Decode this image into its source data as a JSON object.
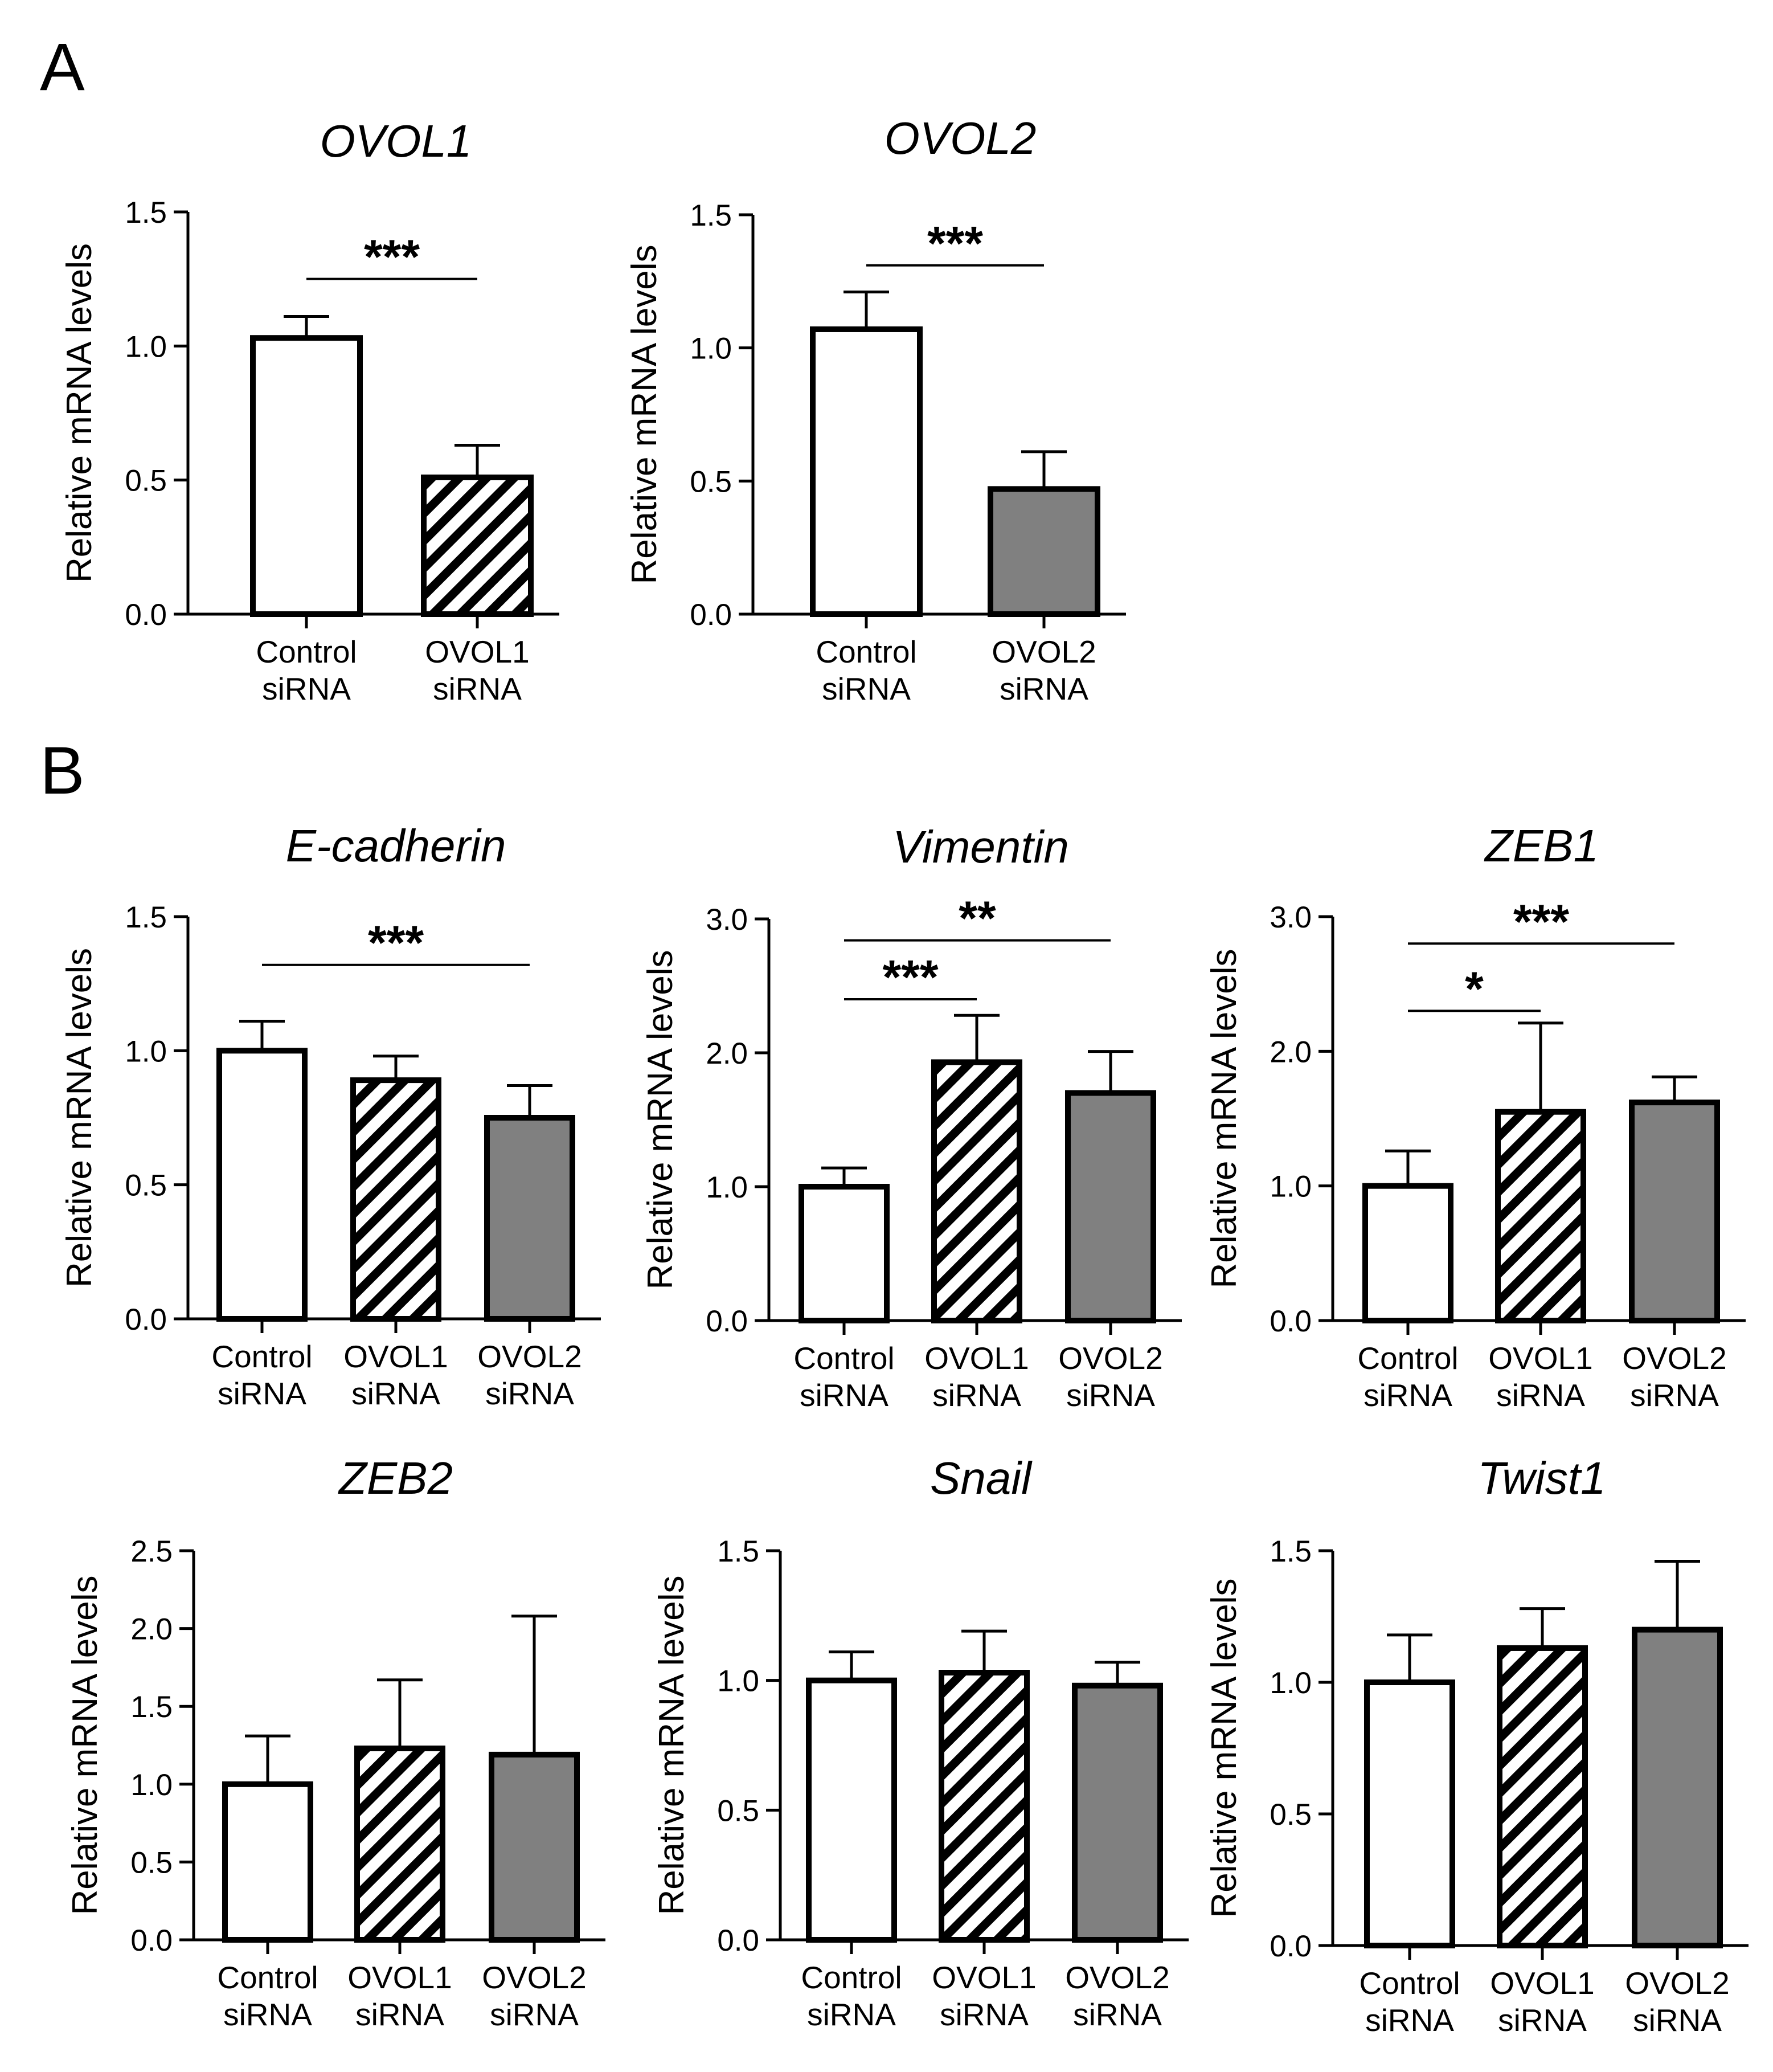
{
  "panels": [
    "A",
    "B"
  ],
  "styles": {
    "Control siRNA": {
      "fill": "#ffffff",
      "hatch": false
    },
    "OVOL1 siRNA": {
      "fill": "#ffffff",
      "hatch": true
    },
    "OVOL2 siRNA": {
      "fill": "#808080",
      "hatch": false
    }
  },
  "colors": {
    "axis": "#000000",
    "solid_fill": "#808080",
    "background": "#ffffff"
  },
  "chart_data": [
    {
      "id": "ovol1",
      "panel": "A",
      "type": "bar",
      "title": "OVOL1",
      "ylabel": "Relative mRNA levels",
      "xlabel": "",
      "ylim": [
        0,
        1.5
      ],
      "yticks": [
        "0.0",
        "0.5",
        "1.0",
        "1.5"
      ],
      "categories": [
        [
          "Control",
          "siRNA"
        ],
        [
          "OVOL1",
          "siRNA"
        ]
      ],
      "groups": [
        "Control siRNA",
        "OVOL1 siRNA"
      ],
      "values": [
        1.03,
        0.51
      ],
      "errors": [
        0.08,
        0.12
      ],
      "significance": [
        {
          "from": 0,
          "to": 1,
          "label": "***",
          "y": 1.25
        }
      ]
    },
    {
      "id": "ovol2",
      "panel": "A",
      "type": "bar",
      "title": "OVOL2",
      "ylabel": "Relative mRNA levels",
      "xlabel": "",
      "ylim": [
        0,
        1.5
      ],
      "yticks": [
        "0.0",
        "0.5",
        "1.0",
        "1.5"
      ],
      "categories": [
        [
          "Control",
          "siRNA"
        ],
        [
          "OVOL2",
          "siRNA"
        ]
      ],
      "groups": [
        "Control siRNA",
        "OVOL2 siRNA"
      ],
      "values": [
        1.07,
        0.47
      ],
      "errors": [
        0.14,
        0.14
      ],
      "significance": [
        {
          "from": 0,
          "to": 1,
          "label": "***",
          "y": 1.31
        }
      ]
    },
    {
      "id": "ecadherin",
      "panel": "B",
      "type": "bar",
      "title": "E-cadherin",
      "ylabel": "Relative mRNA levels",
      "xlabel": "",
      "ylim": [
        0,
        1.5
      ],
      "yticks": [
        "0.0",
        "0.5",
        "1.0",
        "1.5"
      ],
      "categories": [
        [
          "Control",
          "siRNA"
        ],
        [
          "OVOL1",
          "siRNA"
        ],
        [
          "OVOL2",
          "siRNA"
        ]
      ],
      "groups": [
        "Control siRNA",
        "OVOL1 siRNA",
        "OVOL2 siRNA"
      ],
      "values": [
        1.0,
        0.89,
        0.75
      ],
      "errors": [
        0.11,
        0.09,
        0.12
      ],
      "significance": [
        {
          "from": 0,
          "to": 2,
          "label": "***",
          "y": 1.32
        }
      ]
    },
    {
      "id": "vimentin",
      "panel": "B",
      "type": "bar",
      "title": "Vimentin",
      "ylabel": "Relative mRNA levels",
      "xlabel": "",
      "ylim": [
        0,
        3.0
      ],
      "yticks": [
        "0.0",
        "1.0",
        "2.0",
        "3.0"
      ],
      "categories": [
        [
          "Control",
          "siRNA"
        ],
        [
          "OVOL1",
          "siRNA"
        ],
        [
          "OVOL2",
          "siRNA"
        ]
      ],
      "groups": [
        "Control siRNA",
        "OVOL1 siRNA",
        "OVOL2 siRNA"
      ],
      "values": [
        1.0,
        1.93,
        1.7
      ],
      "errors": [
        0.14,
        0.35,
        0.31
      ],
      "significance": [
        {
          "from": 0,
          "to": 2,
          "label": "**",
          "y": 2.84
        },
        {
          "from": 0,
          "to": 1,
          "label": "***",
          "y": 2.4
        }
      ]
    },
    {
      "id": "zeb1",
      "panel": "B",
      "type": "bar",
      "title": "ZEB1",
      "ylabel": "Relative mRNA levels",
      "xlabel": "",
      "ylim": [
        0,
        3.0
      ],
      "yticks": [
        "0.0",
        "1.0",
        "2.0",
        "3.0"
      ],
      "categories": [
        [
          "Control",
          "siRNA"
        ],
        [
          "OVOL1",
          "siRNA"
        ],
        [
          "OVOL2",
          "siRNA"
        ]
      ],
      "groups": [
        "Control siRNA",
        "OVOL1 siRNA",
        "OVOL2 siRNA"
      ],
      "values": [
        1.0,
        1.55,
        1.62
      ],
      "errors": [
        0.26,
        0.66,
        0.19
      ],
      "significance": [
        {
          "from": 0,
          "to": 2,
          "label": "***",
          "y": 2.8
        },
        {
          "from": 0,
          "to": 1,
          "label": "*",
          "y": 2.3
        }
      ]
    },
    {
      "id": "zeb2",
      "panel": "B",
      "type": "bar",
      "title": "ZEB2",
      "ylabel": "Relative mRNA levels",
      "xlabel": "",
      "ylim": [
        0,
        2.5
      ],
      "yticks": [
        "0.0",
        "0.5",
        "1.0",
        "1.5",
        "2.0",
        "2.5"
      ],
      "categories": [
        [
          "Control",
          "siRNA"
        ],
        [
          "OVOL1",
          "siRNA"
        ],
        [
          "OVOL2",
          "siRNA"
        ]
      ],
      "groups": [
        "Control siRNA",
        "OVOL1 siRNA",
        "OVOL2 siRNA"
      ],
      "values": [
        1.0,
        1.23,
        1.19
      ],
      "errors": [
        0.31,
        0.44,
        0.89
      ],
      "significance": []
    },
    {
      "id": "snail",
      "panel": "B",
      "type": "bar",
      "title": "Snail",
      "ylabel": "Relative mRNA levels",
      "xlabel": "",
      "ylim": [
        0,
        1.5
      ],
      "yticks": [
        "0.0",
        "0.5",
        "1.0",
        "1.5"
      ],
      "categories": [
        [
          "Control",
          "siRNA"
        ],
        [
          "OVOL1",
          "siRNA"
        ],
        [
          "OVOL2",
          "siRNA"
        ]
      ],
      "groups": [
        "Control siRNA",
        "OVOL1 siRNA",
        "OVOL2 siRNA"
      ],
      "values": [
        1.0,
        1.03,
        0.98
      ],
      "errors": [
        0.11,
        0.16,
        0.09
      ],
      "significance": []
    },
    {
      "id": "twist1",
      "panel": "B",
      "type": "bar",
      "title": "Twist1",
      "ylabel": "Relative mRNA levels",
      "xlabel": "",
      "ylim": [
        0,
        1.5
      ],
      "yticks": [
        "0.0",
        "0.5",
        "1.0",
        "1.5"
      ],
      "categories": [
        [
          "Control",
          "siRNA"
        ],
        [
          "OVOL1",
          "siRNA"
        ],
        [
          "OVOL2",
          "siRNA"
        ]
      ],
      "groups": [
        "Control siRNA",
        "OVOL1 siRNA",
        "OVOL2 siRNA"
      ],
      "values": [
        1.0,
        1.13,
        1.2
      ],
      "errors": [
        0.18,
        0.15,
        0.26
      ],
      "significance": []
    }
  ]
}
